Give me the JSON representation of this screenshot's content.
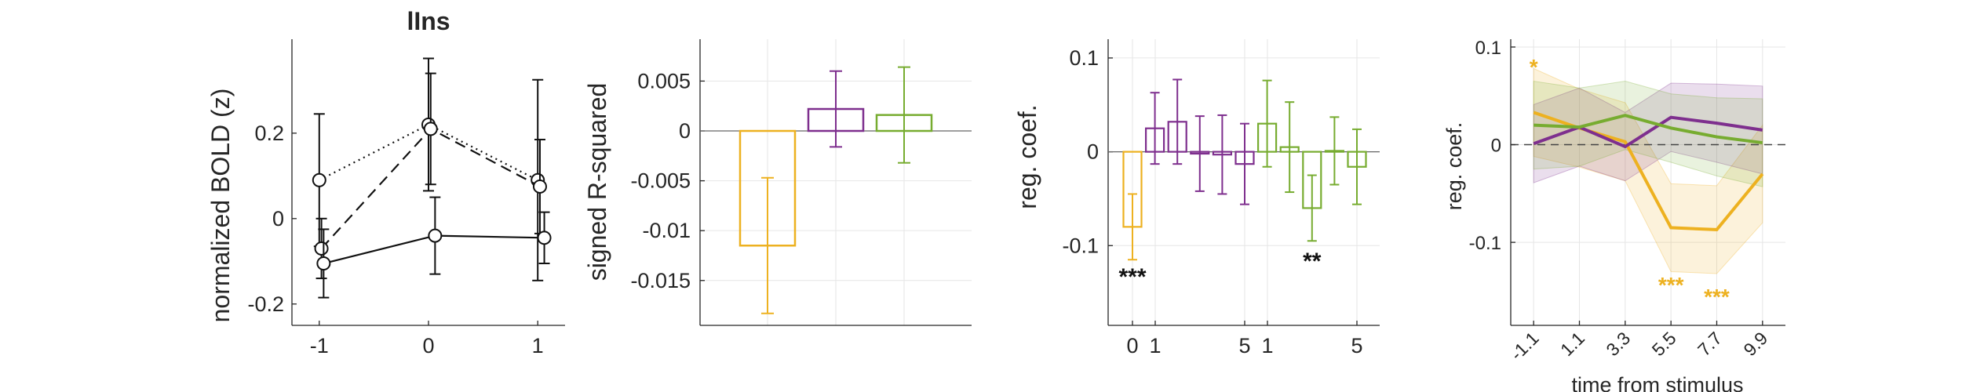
{
  "chart_data": [
    {
      "type": "line",
      "title": "lIns",
      "ylabel": "normalized BOLD (z)",
      "xlabel": "",
      "xlim": [
        -1.25,
        1.25
      ],
      "ylim": [
        -0.25,
        0.42
      ],
      "xticks": [
        -1,
        0,
        1
      ],
      "xtick_labels": [
        "-1",
        "0",
        "1"
      ],
      "yticks": [
        -0.2,
        0,
        0.2
      ],
      "ytick_labels": [
        "-0.2",
        "0",
        "0.2"
      ],
      "grid": false,
      "series": [
        {
          "style": "dotted",
          "points": [
            {
              "x": -1,
              "y": 0.09,
              "err": 0.155
            },
            {
              "x": 0,
              "y": 0.22,
              "err": 0.155
            },
            {
              "x": 1,
              "y": 0.09,
              "err": 0.235
            }
          ]
        },
        {
          "style": "dashed",
          "points": [
            {
              "x": -0.98,
              "y": -0.07,
              "err": 0.07
            },
            {
              "x": 0.02,
              "y": 0.21,
              "err": 0.13
            },
            {
              "x": 1.02,
              "y": 0.075,
              "err": 0.11
            }
          ]
        },
        {
          "style": "solid",
          "points": [
            {
              "x": -0.96,
              "y": -0.105,
              "err": 0.08
            },
            {
              "x": 0.06,
              "y": -0.04,
              "err": 0.09
            },
            {
              "x": 1.06,
              "y": -0.045,
              "err": 0.06
            }
          ]
        }
      ]
    },
    {
      "type": "bar",
      "title": "",
      "ylabel": "signed R-squared",
      "xlabel": "",
      "ylim": [
        -0.0195,
        0.0092
      ],
      "yticks": [
        -0.015,
        -0.01,
        -0.005,
        0,
        0.005
      ],
      "ytick_labels": [
        "-0.015",
        "-0.01",
        "-0.005",
        "0",
        "0.005"
      ],
      "grid": true,
      "bars": [
        {
          "value": -0.0115,
          "err": 0.0068,
          "color": "#edb120"
        },
        {
          "value": 0.0022,
          "err": 0.0038,
          "color": "#7e2f8e"
        },
        {
          "value": 0.0016,
          "err": 0.0048,
          "color": "#77ac30"
        }
      ]
    },
    {
      "type": "bar",
      "title": "",
      "ylabel": "reg. coef.",
      "xlabel": "",
      "ylim": [
        -0.185,
        0.12
      ],
      "yticks": [
        -0.1,
        0,
        0.1
      ],
      "ytick_labels": [
        "-0.1",
        "0",
        "0.1"
      ],
      "xtick_labels": [
        "0",
        "1",
        "5",
        "1",
        "5"
      ],
      "grid": true,
      "bars": [
        {
          "value": -0.08,
          "err": 0.035,
          "color": "#edb120"
        },
        {
          "value": 0.025,
          "err": 0.038,
          "color": "#7e2f8e"
        },
        {
          "value": 0.032,
          "err": 0.045,
          "color": "#7e2f8e"
        },
        {
          "value": -0.002,
          "err": 0.04,
          "color": "#7e2f8e"
        },
        {
          "value": -0.003,
          "err": 0.042,
          "color": "#7e2f8e"
        },
        {
          "value": -0.013,
          "err": 0.043,
          "color": "#7e2f8e"
        },
        {
          "value": 0.03,
          "err": 0.046,
          "color": "#77ac30"
        },
        {
          "value": 0.005,
          "err": 0.048,
          "color": "#77ac30"
        },
        {
          "value": -0.06,
          "err": 0.035,
          "color": "#77ac30"
        },
        {
          "value": 0.001,
          "err": 0.036,
          "color": "#77ac30"
        },
        {
          "value": -0.016,
          "err": 0.04,
          "color": "#77ac30"
        }
      ],
      "annotations": [
        {
          "text": "***",
          "bar": 0,
          "y": -0.13
        },
        {
          "text": "**",
          "bar": 8,
          "y": -0.113
        }
      ]
    },
    {
      "type": "line",
      "title": "",
      "ylabel": "reg. coef.",
      "xlabel": "time from stimulus",
      "xlim": [
        -2.2,
        11.0
      ],
      "ylim": [
        -0.185,
        0.108
      ],
      "xticks": [
        -1.1,
        1.1,
        3.3,
        5.5,
        7.7,
        9.9
      ],
      "xtick_labels": [
        "-1.1",
        "1.1",
        "3.3",
        "5.5",
        "7.7",
        "9.9"
      ],
      "yticks": [
        -0.1,
        0,
        0.1
      ],
      "ytick_labels": [
        "-0.1",
        "0",
        "0.1"
      ],
      "grid": true,
      "zero_line": "dashed",
      "series": [
        {
          "color": "#edb120",
          "x": [
            -1.1,
            1.1,
            3.3,
            5.5,
            7.7,
            9.9
          ],
          "y": [
            0.033,
            0.017,
            0.003,
            -0.085,
            -0.087,
            -0.03
          ],
          "band": [
            0.045,
            0.04,
            0.04,
            0.045,
            0.045,
            0.05
          ]
        },
        {
          "color": "#7e2f8e",
          "x": [
            -1.1,
            1.1,
            3.3,
            5.5,
            7.7,
            9.9
          ],
          "y": [
            0.001,
            0.018,
            -0.002,
            0.028,
            0.022,
            0.015
          ],
          "band": [
            0.04,
            0.04,
            0.035,
            0.035,
            0.04,
            0.045
          ]
        },
        {
          "color": "#77ac30",
          "x": [
            -1.1,
            1.1,
            3.3,
            5.5,
            7.7,
            9.9
          ],
          "y": [
            0.02,
            0.018,
            0.03,
            0.017,
            0.008,
            0.002
          ],
          "band": [
            0.045,
            0.04,
            0.035,
            0.035,
            0.04,
            0.045
          ]
        }
      ],
      "annotations": [
        {
          "text": "*",
          "x": -1.1,
          "y": 0.083,
          "color": "#edb120"
        },
        {
          "text": "***",
          "x": 5.5,
          "y": -0.14,
          "color": "#edb120"
        },
        {
          "text": "***",
          "x": 7.7,
          "y": -0.152,
          "color": "#edb120"
        }
      ]
    }
  ]
}
